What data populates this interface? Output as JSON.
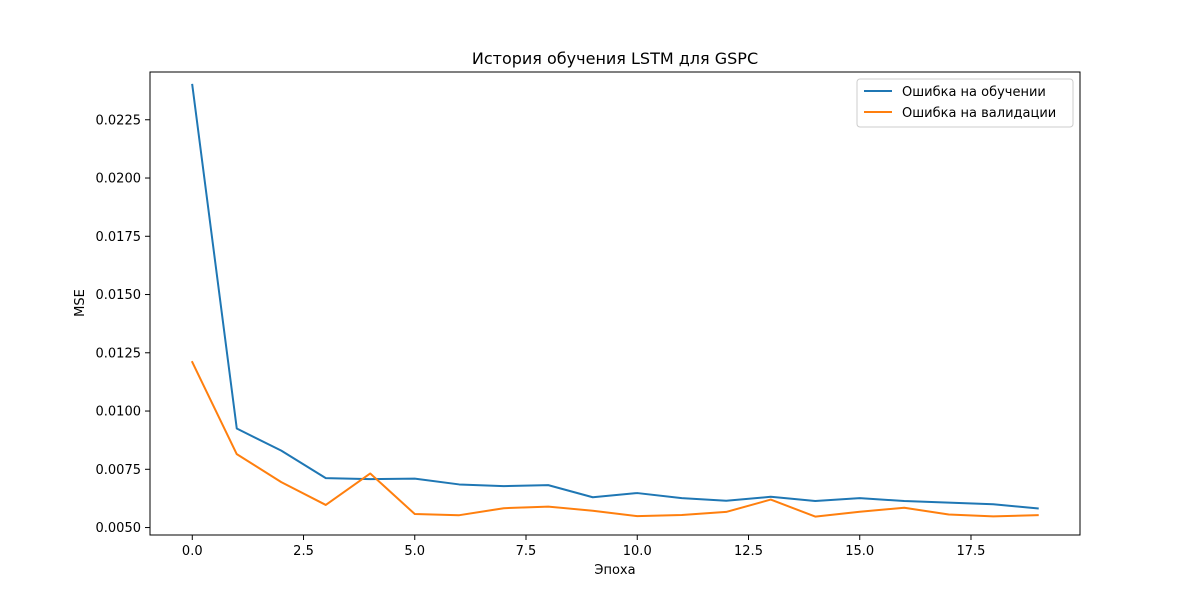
{
  "chart_data": {
    "type": "line",
    "title": "История обучения LSTM для GSPC",
    "xlabel": "Эпоха",
    "ylabel": "MSE",
    "xlim": [
      -0.95,
      19.95
    ],
    "ylim": [
      0.00468,
      0.02455
    ],
    "xticks": [
      0.0,
      2.5,
      5.0,
      7.5,
      10.0,
      12.5,
      15.0,
      17.5
    ],
    "xtick_labels": [
      "0.0",
      "2.5",
      "5.0",
      "7.5",
      "10.0",
      "12.5",
      "15.0",
      "17.5"
    ],
    "yticks": [
      0.005,
      0.0075,
      0.01,
      0.0125,
      0.015,
      0.0175,
      0.02,
      0.0225
    ],
    "ytick_labels": [
      "0.0050",
      "0.0075",
      "0.0100",
      "0.0125",
      "0.0150",
      "0.0175",
      "0.0200",
      "0.0225"
    ],
    "grid": false,
    "legend_position": "top-right",
    "x": [
      0,
      1,
      2,
      3,
      4,
      5,
      6,
      7,
      8,
      9,
      10,
      11,
      12,
      13,
      14,
      15,
      16,
      17,
      18,
      19
    ],
    "series": [
      {
        "name": "Ошибка на обучении",
        "color": "#1f77b4",
        "values": [
          0.024,
          0.00925,
          0.0083,
          0.00712,
          0.00708,
          0.0071,
          0.00685,
          0.00678,
          0.00682,
          0.0063,
          0.00648,
          0.00626,
          0.00615,
          0.00632,
          0.00614,
          0.00626,
          0.00614,
          0.00607,
          0.006,
          0.00582
        ]
      },
      {
        "name": "Ошибка на валидации",
        "color": "#ff7f0e",
        "values": [
          0.0121,
          0.00815,
          0.00695,
          0.00597,
          0.00732,
          0.00558,
          0.00553,
          0.00583,
          0.0059,
          0.00572,
          0.00549,
          0.00554,
          0.00567,
          0.0062,
          0.00547,
          0.00568,
          0.00585,
          0.00556,
          0.00548,
          0.00553
        ]
      }
    ]
  }
}
